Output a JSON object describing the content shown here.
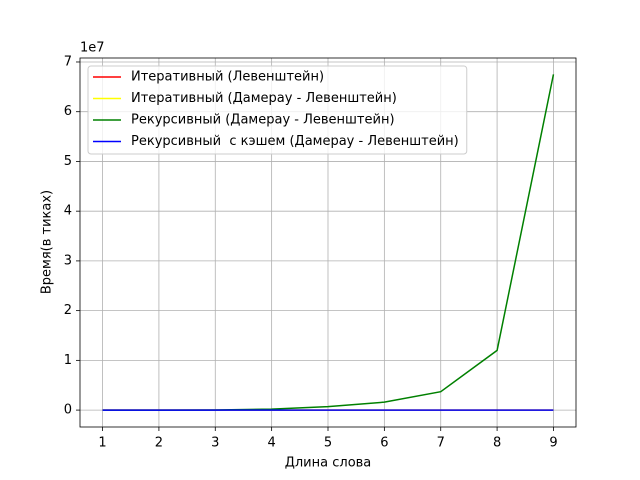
{
  "chart_data": {
    "type": "line",
    "x": [
      1,
      2,
      3,
      4,
      5,
      6,
      7,
      8,
      9
    ],
    "series": [
      {
        "name": "Итеративный (Левенштейн)",
        "color": "#ff0000",
        "values": [
          0,
          0,
          0,
          0,
          0,
          0,
          0,
          0,
          0
        ]
      },
      {
        "name": "Итеративный (Дамерау - Левенштейн)",
        "color": "#ffff00",
        "values": [
          0,
          0,
          0,
          0,
          0,
          0,
          0,
          0,
          0
        ]
      },
      {
        "name": "Рекурсивный (Дамерау - Левенштейн)",
        "color": "#008000",
        "values": [
          0,
          0.0005,
          0.003,
          0.02,
          0.07,
          0.16,
          0.37,
          1.2,
          6.75
        ]
      },
      {
        "name": "Рекурсивный  с кэшем (Дамерау - Левенштейн)",
        "color": "#0000ff",
        "values": [
          0,
          0,
          0,
          0,
          0,
          0,
          0,
          0,
          0
        ]
      }
    ],
    "xlabel": "Длина слова",
    "ylabel": "Время(в тиках)",
    "y_offset_text": "1e7",
    "xlim": [
      0.6,
      9.4
    ],
    "xticks": [
      1,
      2,
      3,
      4,
      5,
      6,
      7,
      8,
      9
    ],
    "ylim": [
      -0.34,
      7.08
    ],
    "yticks": [
      0,
      1,
      2,
      3,
      4,
      5,
      6,
      7
    ],
    "grid": true,
    "legend": "upper left"
  }
}
